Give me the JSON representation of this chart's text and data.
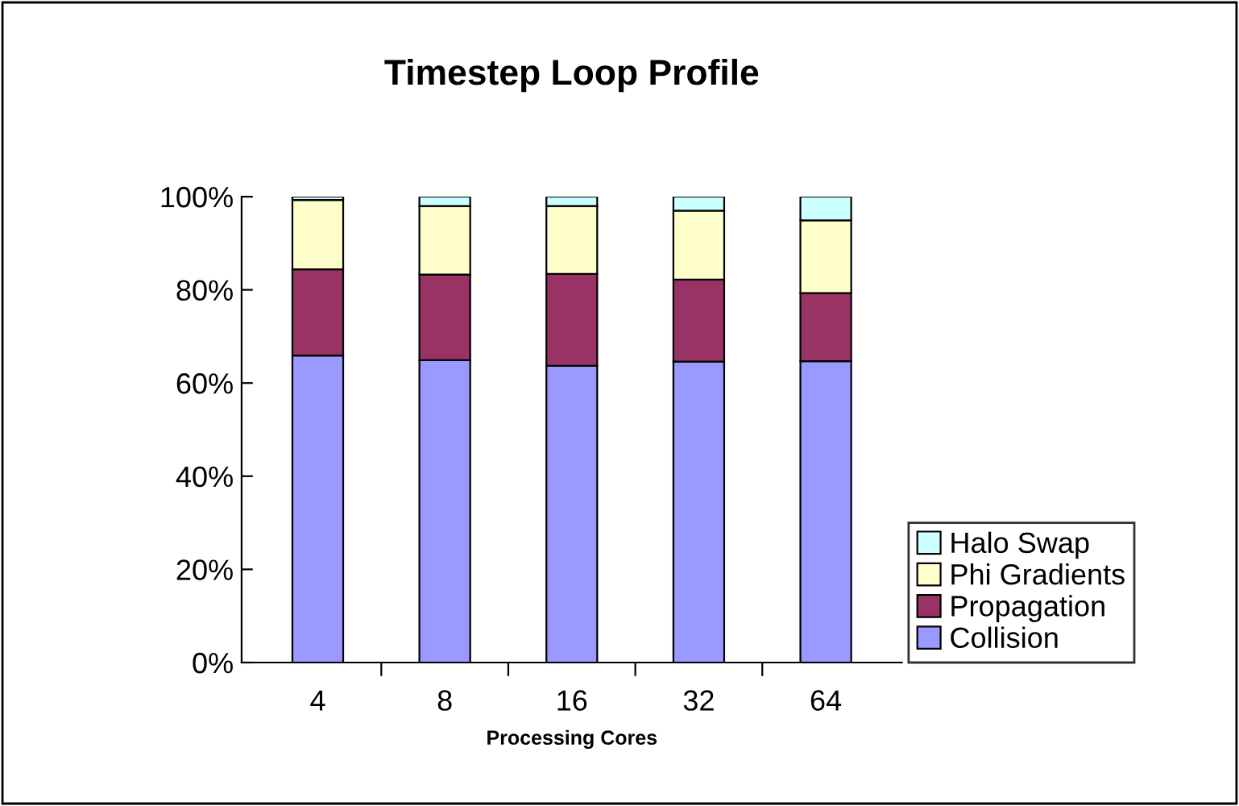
{
  "chart_data": {
    "type": "bar",
    "title": "Timestep Loop Profile",
    "xlabel": "Processing Cores",
    "stacked": true,
    "legend": "right",
    "categories": [
      "4",
      "8",
      "16",
      "32",
      "64"
    ],
    "series": [
      {
        "name": "Collision",
        "color": "#9999ff",
        "values": [
          65.9,
          64.9,
          63.7,
          64.6,
          64.7
        ]
      },
      {
        "name": "Propagation",
        "color": "#993366",
        "values": [
          18.5,
          18.4,
          19.7,
          17.6,
          14.6
        ]
      },
      {
        "name": "Phi Gradients",
        "color": "#ffffcc",
        "values": [
          14.9,
          14.7,
          14.6,
          14.8,
          15.6
        ]
      },
      {
        "name": "Halo Swap",
        "color": "#ccffff",
        "values": [
          0.7,
          2.0,
          2.0,
          3.0,
          5.1
        ]
      }
    ],
    "ylim": [
      0,
      100
    ],
    "yticks": [
      {
        "value": 0,
        "label": "0%"
      },
      {
        "value": 20,
        "label": "20%"
      },
      {
        "value": 40,
        "label": "40%"
      },
      {
        "value": 60,
        "label": "60%"
      },
      {
        "value": 80,
        "label": "80%"
      },
      {
        "value": 100,
        "label": "100%"
      }
    ],
    "grid": false
  }
}
